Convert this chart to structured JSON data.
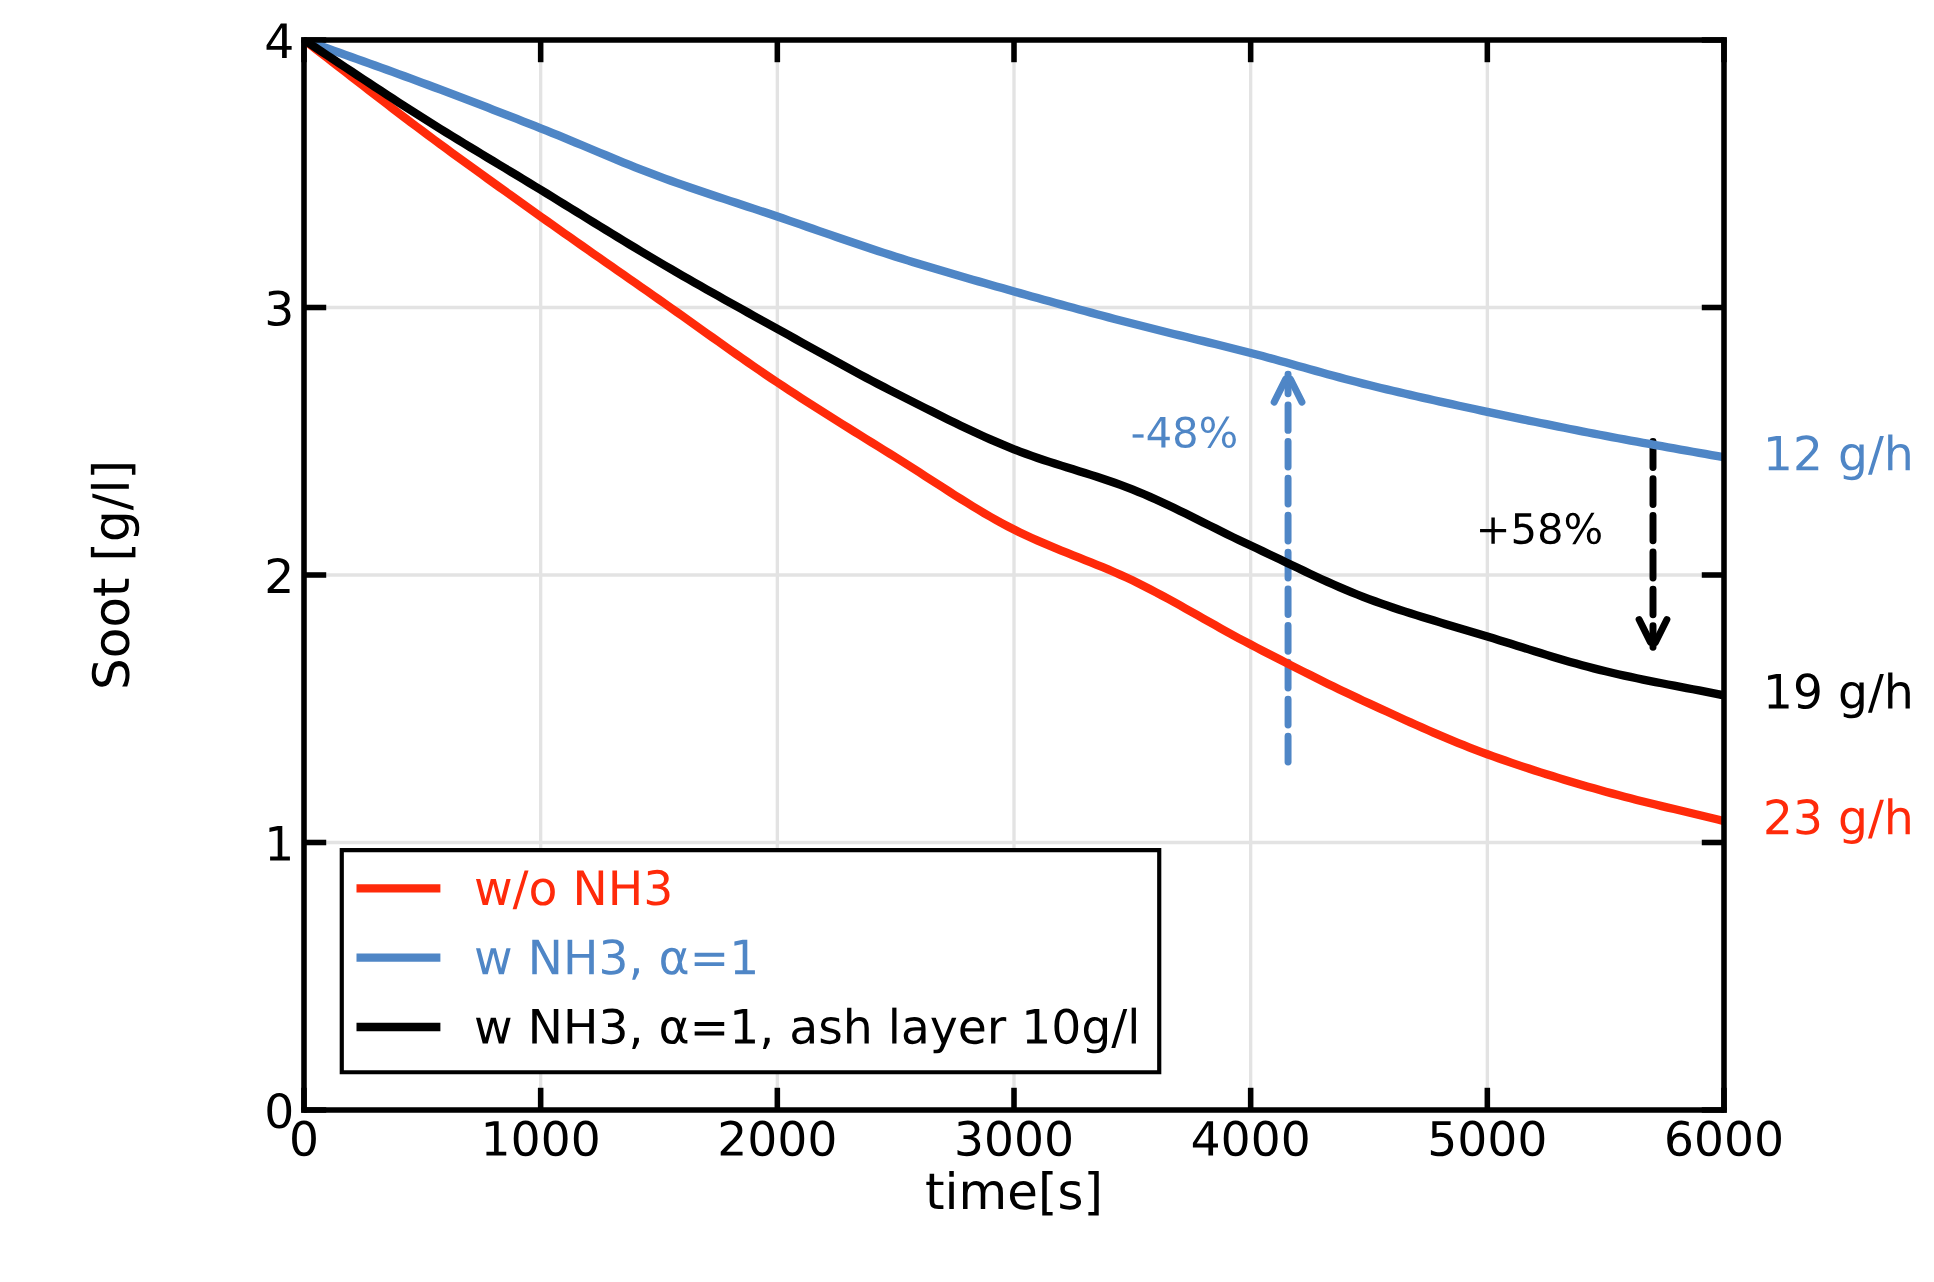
{
  "chart_data": {
    "type": "line",
    "xlabel": "time[s]",
    "ylabel": "Soot [g/l]",
    "x": [
      0,
      500,
      1000,
      1500,
      2000,
      2500,
      3000,
      3500,
      4000,
      4500,
      5000,
      5500,
      6000
    ],
    "series": [
      {
        "name": "w/o NH3",
        "color": "#ff2a0a",
        "values": [
          4,
          3.66,
          3.34,
          3.03,
          2.72,
          2.44,
          2.17,
          1.98,
          1.74,
          1.52,
          1.33,
          1.19,
          1.08
        ]
      },
      {
        "name": "w NH3, α=1",
        "color": "#4f86c6",
        "values": [
          4,
          3.84,
          3.67,
          3.49,
          3.34,
          3.19,
          3.06,
          2.94,
          2.83,
          2.71,
          2.61,
          2.52,
          2.44
        ]
      },
      {
        "name": "w NH3, α=1, ash layer 10g/l",
        "color": "#000000",
        "values": [
          4,
          3.71,
          3.44,
          3.17,
          2.92,
          2.68,
          2.47,
          2.32,
          2.11,
          1.91,
          1.77,
          1.64,
          1.55
        ]
      }
    ],
    "xlim": [
      0,
      6000
    ],
    "xticks": [
      0,
      1000,
      2000,
      3000,
      4000,
      5000,
      6000
    ],
    "ylim": [
      0,
      4
    ],
    "yticks": [
      0,
      1,
      2,
      3,
      4
    ],
    "grid": true,
    "legend": "bottom left",
    "line_style": "solid",
    "marker": "none",
    "annotations": [
      "-48%",
      "+58%",
      "12 g/h",
      "19 g/h",
      "23 g/h"
    ]
  }
}
